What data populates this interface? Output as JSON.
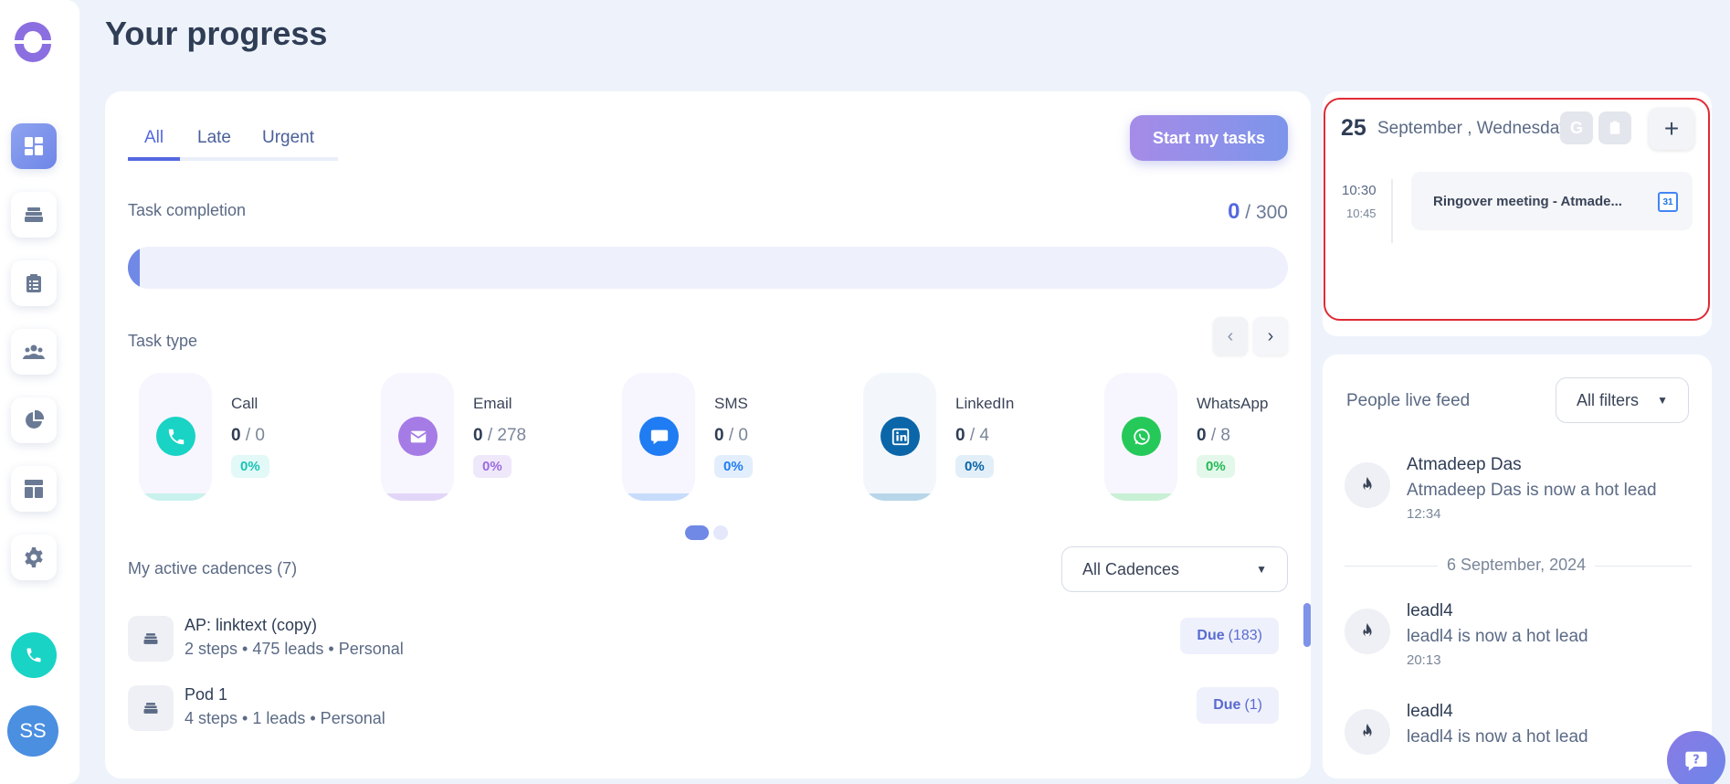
{
  "page": {
    "title": "Your progress"
  },
  "tabs": [
    {
      "label": "All",
      "active": true
    },
    {
      "label": "Late",
      "active": false
    },
    {
      "label": "Urgent",
      "active": false
    }
  ],
  "actions": {
    "start_tasks": "Start my tasks"
  },
  "completion": {
    "label": "Task completion",
    "done": "0",
    "total": "/ 300",
    "progress_fraction": 0
  },
  "task_type": {
    "label": "Task type",
    "items": [
      {
        "name": "Call",
        "done": "0",
        "total": "/ 0",
        "percent": "0%",
        "color": "#19d3c5",
        "pill": "#f7f6fe",
        "bottom": "#c9f1ee",
        "pct_bg": "#e3f9f7",
        "pct_color": "#19c4b6",
        "icon": "phone-icon"
      },
      {
        "name": "Email",
        "done": "0",
        "total": "/ 278",
        "percent": "0%",
        "color": "#a57be6",
        "pill": "#f7f6fe",
        "bottom": "#e2d6f8",
        "pct_bg": "#efe8fb",
        "pct_color": "#9a6be0",
        "icon": "mail-icon"
      },
      {
        "name": "SMS",
        "done": "0",
        "total": "/ 0",
        "percent": "0%",
        "color": "#1f7cf2",
        "pill": "#f7f6fe",
        "bottom": "#c7dcfb",
        "pct_bg": "#e3eefd",
        "pct_color": "#1f7cf2",
        "icon": "chat-icon"
      },
      {
        "name": "LinkedIn",
        "done": "0",
        "total": "/ 4",
        "percent": "0%",
        "color": "#0a66a8",
        "pill": "#f3f7fc",
        "bottom": "#b8d6ea",
        "pct_bg": "#e3eff8",
        "pct_color": "#0a66a8",
        "icon": "linkedin-icon"
      },
      {
        "name": "WhatsApp",
        "done": "0",
        "total": "/ 8",
        "percent": "0%",
        "color": "#25c95a",
        "pill": "#f7f6fe",
        "bottom": "#c8f0d5",
        "pct_bg": "#e3f8ea",
        "pct_color": "#25b956",
        "icon": "whatsapp-icon"
      }
    ]
  },
  "cadences": {
    "label": "My active cadences (7)",
    "filter": "All Cadences",
    "items": [
      {
        "name": "AP: linktext (copy)",
        "meta": "2 steps • 475 leads • Personal",
        "due_label": "Due",
        "due_count": "(183)"
      },
      {
        "name": "Pod 1",
        "meta": "4 steps • 1 leads • Personal",
        "due_label": "Due",
        "due_count": "(1)"
      }
    ]
  },
  "calendar": {
    "day": "25",
    "date": "September , Wednesday",
    "mini_g": "G",
    "add": "+",
    "event": {
      "start": "10:30",
      "end": "10:45",
      "title": "Ringover meeting - Atmade...",
      "cal_badge": "31"
    }
  },
  "feed": {
    "title": "People live feed",
    "filter": "All filters",
    "date_separator": "6 September, 2024",
    "items": [
      {
        "name": "Atmadeep Das",
        "text": "Atmadeep Das is now a hot lead",
        "time": "12:34"
      },
      {
        "name": "leadl4",
        "text": "leadl4 is now a hot lead",
        "time": "20:13"
      },
      {
        "name": "leadl4",
        "text": "leadl4 is now a hot lead",
        "time": ""
      }
    ]
  },
  "user": {
    "initials": "SS"
  }
}
